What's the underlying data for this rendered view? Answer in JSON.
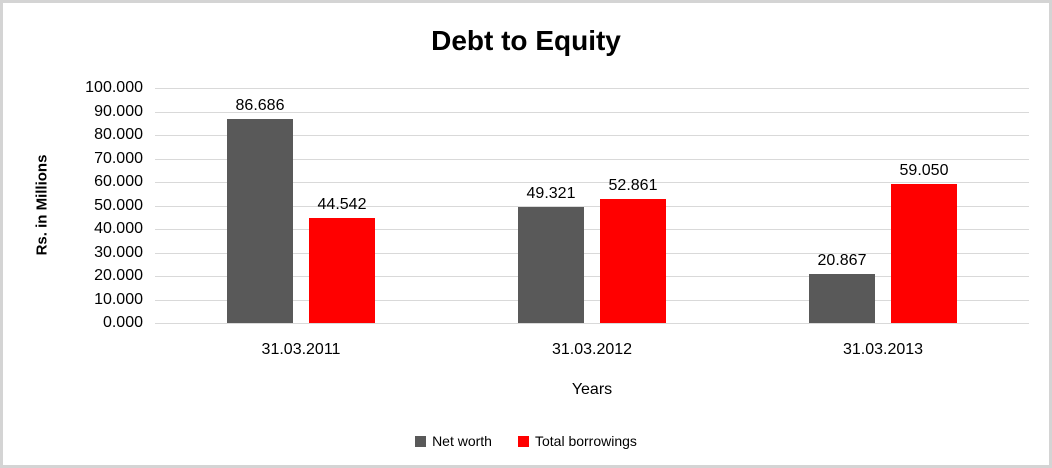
{
  "chart_data": {
    "type": "bar",
    "title": "Debt to Equity",
    "xlabel": "Years",
    "ylabel": "Rs. in Millions",
    "categories": [
      "31.03.2011",
      "31.03.2012",
      "31.03.2013"
    ],
    "series": [
      {
        "name": "Net worth",
        "color": "#595959",
        "values": [
          86.686,
          49.321,
          20.867
        ],
        "labels": [
          "86.686",
          "49.321",
          "20.867"
        ]
      },
      {
        "name": "Total borrowings",
        "color": "#ff0000",
        "values": [
          44.542,
          52.861,
          59.05
        ],
        "labels": [
          "44.542",
          "52.861",
          "59.050"
        ]
      }
    ],
    "ylim": [
      0,
      100
    ],
    "ytick_step": 10,
    "ytick_labels": [
      "0.000",
      "10.000",
      "20.000",
      "30.000",
      "40.000",
      "50.000",
      "60.000",
      "70.000",
      "80.000",
      "90.000",
      "100.000"
    ],
    "grid": true,
    "legend_position": "bottom",
    "colors": {
      "gridline": "#d9d9d9",
      "text": "#000000",
      "frame_border": "#d4d4d4",
      "background": "#ffffff"
    }
  }
}
